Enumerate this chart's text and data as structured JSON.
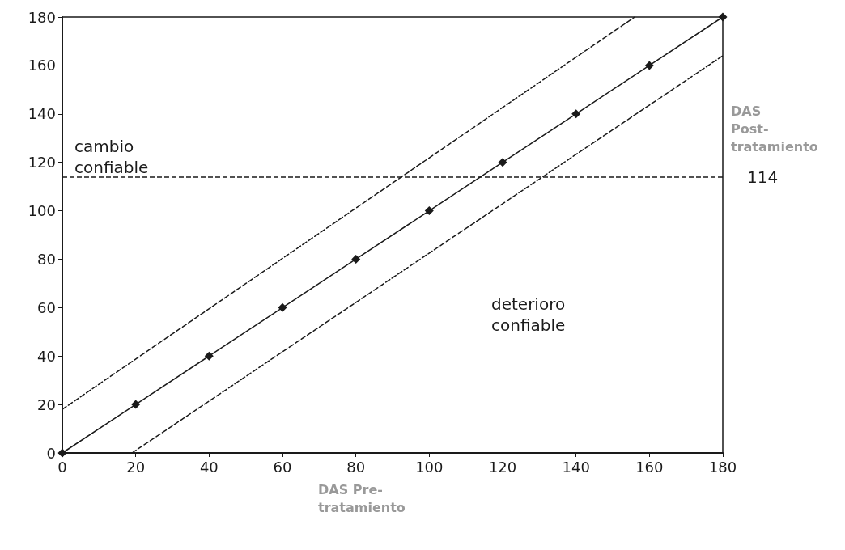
{
  "chart_data": {
    "type": "line",
    "xlabel": "DAS Pre- tratamiento",
    "ylabel": "DAS Post- tratamiento",
    "annotations": [
      "cambio confiable",
      "deterioro confiable"
    ],
    "series": [
      {
        "color": "#1a1a1a",
        "x": [
          0,
          20,
          40,
          60,
          80,
          100,
          120,
          140,
          160,
          180
        ],
        "values": [
          0,
          20,
          40,
          60,
          80,
          100,
          120,
          140,
          160,
          180
        ],
        "marker": "diamond",
        "line_style": "solid"
      },
      {
        "color": "#1a1a1a",
        "x": [
          0,
          156
        ],
        "values": [
          18,
          180
        ],
        "marker": "none",
        "line_style": "dashed"
      },
      {
        "color": "#1a1a1a",
        "x": [
          19,
          180
        ],
        "values": [
          0,
          164
        ],
        "marker": "none",
        "line_style": "dashed"
      }
    ],
    "ref_lines": [
      {
        "axis": "y",
        "value": 114,
        "label": "114",
        "line_style": "dashed"
      }
    ],
    "xlim": [
      0,
      180
    ],
    "ylim": [
      0,
      180
    ],
    "xticks": [
      0,
      20,
      40,
      60,
      80,
      100,
      120,
      140,
      160,
      180
    ],
    "yticks": [
      0,
      20,
      40,
      60,
      80,
      100,
      120,
      140,
      160,
      180
    ],
    "grid": false
  }
}
